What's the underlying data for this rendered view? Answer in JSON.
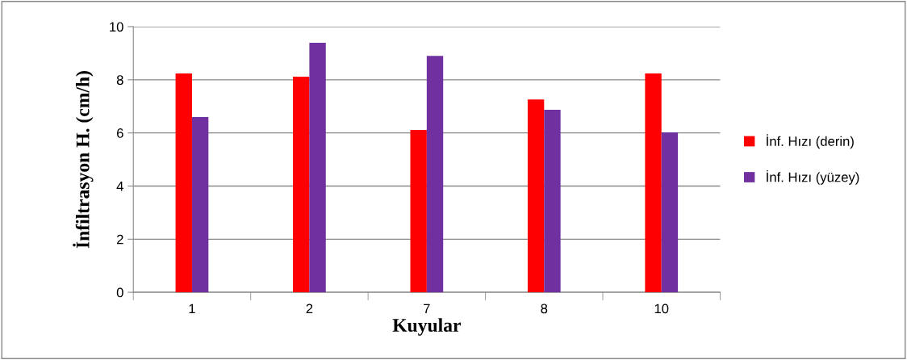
{
  "chart_data": {
    "type": "bar",
    "xlabel": "Kuyular",
    "ylabel": "İnfiltrasyon H. (cm/h)",
    "categories": [
      "1",
      "2",
      "7",
      "8",
      "10"
    ],
    "series": [
      {
        "name": "İnf. Hızı (derin)",
        "color": "#ff0000",
        "values": [
          8.24,
          8.12,
          6.11,
          7.26,
          8.24
        ]
      },
      {
        "name": "İnf. Hızı (yüzey)",
        "color": "#7030a0",
        "values": [
          6.6,
          9.39,
          8.9,
          6.87,
          6.02
        ]
      }
    ],
    "ylim": [
      0,
      10
    ],
    "yticks": [
      0,
      2,
      4,
      6,
      8,
      10
    ],
    "grid": "y",
    "legend": "right"
  }
}
